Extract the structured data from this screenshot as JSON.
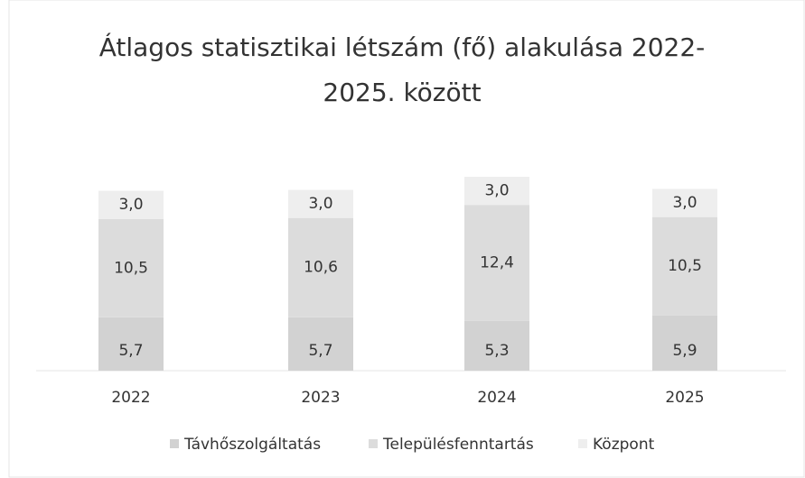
{
  "chart_data": {
    "type": "bar",
    "stacked": true,
    "title": "Átlagos statisztikai létszám (fő) alakulása 2022-2025. között",
    "categories": [
      "2022",
      "2023",
      "2024",
      "2025"
    ],
    "series": [
      {
        "name": "Távhőszolgáltatás",
        "color": "#d2d2d2",
        "values": [
          5.7,
          5.7,
          5.3,
          5.9
        ],
        "value_labels": [
          "5,7",
          "5,7",
          "5,3",
          "5,9"
        ]
      },
      {
        "name": "Településfenntartás",
        "color": "#dcdcdc",
        "values": [
          10.5,
          10.6,
          12.4,
          10.5
        ],
        "value_labels": [
          "10,5",
          "10,6",
          "12,4",
          "10,5"
        ]
      },
      {
        "name": "Központ",
        "color": "#eeeeee",
        "values": [
          3.0,
          3.0,
          3.0,
          3.0
        ],
        "value_labels": [
          "3,0",
          "3,0",
          "3,0",
          "3,0"
        ]
      }
    ],
    "legend": "bottom"
  }
}
